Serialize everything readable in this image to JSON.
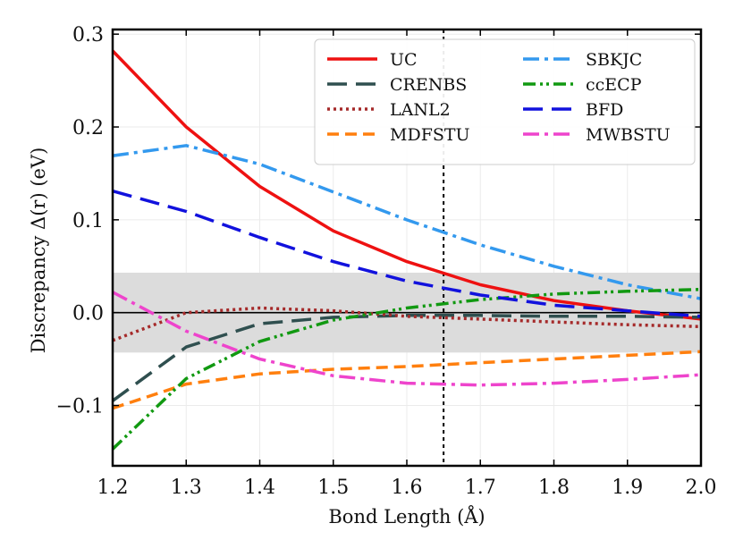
{
  "chart_data": {
    "type": "line",
    "title": "",
    "xlabel": "Bond Length (Å)",
    "ylabel": "Discrepancy Δ(r) (eV)",
    "xlim": [
      1.2,
      2.0
    ],
    "ylim": [
      -0.165,
      0.305
    ],
    "x_ticks": [
      1.2,
      1.3,
      1.4,
      1.5,
      1.6,
      1.7,
      1.8,
      1.9,
      2.0
    ],
    "x_tick_labels": [
      "1.2",
      "1.3",
      "1.4",
      "1.5",
      "1.6",
      "1.7",
      "1.8",
      "1.9",
      "2.0"
    ],
    "y_ticks": [
      -0.1,
      0.0,
      0.1,
      0.2,
      0.3
    ],
    "y_tick_labels": [
      "−0.1",
      "0.0",
      "0.1",
      "0.2",
      "0.3"
    ],
    "shaded_band": {
      "ymin": -0.043,
      "ymax": 0.043,
      "color": "#dcdcdc"
    },
    "zero_line": {
      "y": 0.0,
      "color": "#000000"
    },
    "vertical_reference": {
      "x": 1.65,
      "color": "#000000"
    },
    "grid": true,
    "legend_position": "top-right",
    "series": [
      {
        "name": "UC",
        "color": "#ee1111",
        "dash": "solid",
        "x": [
          1.2,
          1.3,
          1.4,
          1.5,
          1.6,
          1.7,
          1.8,
          1.9,
          2.0
        ],
        "values": [
          0.282,
          0.2,
          0.136,
          0.088,
          0.055,
          0.03,
          0.013,
          0.002,
          -0.007
        ]
      },
      {
        "name": "CRENBS",
        "color": "#2f4f4f",
        "dash": "longdash",
        "x": [
          1.2,
          1.3,
          1.4,
          1.5,
          1.6,
          1.7,
          1.8,
          1.9,
          2.0
        ],
        "values": [
          -0.095,
          -0.037,
          -0.012,
          -0.005,
          -0.003,
          -0.003,
          -0.004,
          -0.004,
          -0.005
        ]
      },
      {
        "name": "LANL2",
        "color": "#a52a2a",
        "dash": "dotted",
        "x": [
          1.2,
          1.3,
          1.4,
          1.5,
          1.6,
          1.7,
          1.8,
          1.9,
          2.0
        ],
        "values": [
          -0.03,
          0.0,
          0.005,
          0.002,
          -0.004,
          -0.007,
          -0.01,
          -0.013,
          -0.015
        ]
      },
      {
        "name": "MDFSTU",
        "color": "#ff7f0e",
        "dash": "dashed",
        "x": [
          1.2,
          1.3,
          1.4,
          1.5,
          1.6,
          1.7,
          1.8,
          1.9,
          2.0
        ],
        "values": [
          -0.103,
          -0.077,
          -0.066,
          -0.061,
          -0.058,
          -0.054,
          -0.05,
          -0.046,
          -0.042
        ]
      },
      {
        "name": "SBKJC",
        "color": "#3399ee",
        "dash": "dashdot",
        "x": [
          1.2,
          1.3,
          1.4,
          1.5,
          1.6,
          1.7,
          1.8,
          1.9,
          2.0
        ],
        "values": [
          0.169,
          0.18,
          0.16,
          0.13,
          0.1,
          0.073,
          0.05,
          0.03,
          0.015
        ]
      },
      {
        "name": "ccECP",
        "color": "#119911",
        "dash": "dashdotdot",
        "x": [
          1.2,
          1.3,
          1.4,
          1.5,
          1.6,
          1.7,
          1.8,
          1.9,
          2.0
        ],
        "values": [
          -0.147,
          -0.071,
          -0.031,
          -0.008,
          0.005,
          0.014,
          0.02,
          0.023,
          0.025
        ]
      },
      {
        "name": "BFD",
        "color": "#1111dd",
        "dash": "longdash",
        "x": [
          1.2,
          1.3,
          1.4,
          1.5,
          1.6,
          1.7,
          1.8,
          1.9,
          2.0
        ],
        "values": [
          0.131,
          0.109,
          0.081,
          0.055,
          0.034,
          0.019,
          0.008,
          0.002,
          -0.004
        ]
      },
      {
        "name": "MWBSTU",
        "color": "#ee44cc",
        "dash": "dashdot",
        "x": [
          1.2,
          1.3,
          1.4,
          1.5,
          1.6,
          1.7,
          1.8,
          1.9,
          2.0
        ],
        "values": [
          0.022,
          -0.02,
          -0.05,
          -0.068,
          -0.076,
          -0.078,
          -0.076,
          -0.072,
          -0.067
        ]
      }
    ]
  }
}
